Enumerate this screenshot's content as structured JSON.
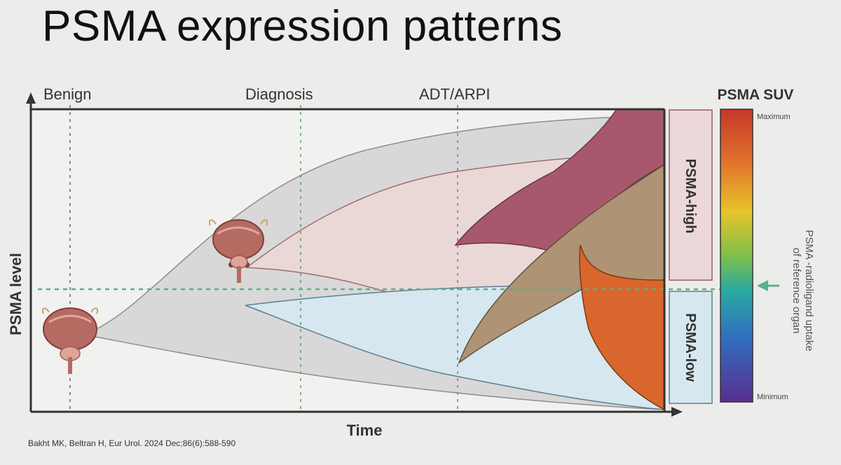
{
  "slide": {
    "title": "PSMA expression patterns",
    "citation": "Bakht MK, Beltran H, Eur Urol. 2024 Dec;86(6):588-590"
  },
  "diagram": {
    "phases": [
      "Benign",
      "Diagnosis",
      "ADT/ARPI"
    ],
    "y_axis_label": "PSMA level",
    "x_axis_label": "Time",
    "categories": [
      "PSMA-high",
      "PSMA-low"
    ],
    "colorbar": {
      "title": "PSMA SUV",
      "max_label": "Maximum",
      "min_label": "Minimum",
      "description_line1": "PSMA -radioligand uptake",
      "description_line2": "of reference organ"
    },
    "colors": {
      "grey_band": "#d9d8d8",
      "pink_band": "#ead8d6",
      "blue_band": "#d6e7ef",
      "maroon_region": "#a8586c",
      "tan_region": "#ae9375",
      "orange_region": "#d9662c",
      "threshold_line": "#58b08c",
      "organ": "#b56a62"
    }
  }
}
